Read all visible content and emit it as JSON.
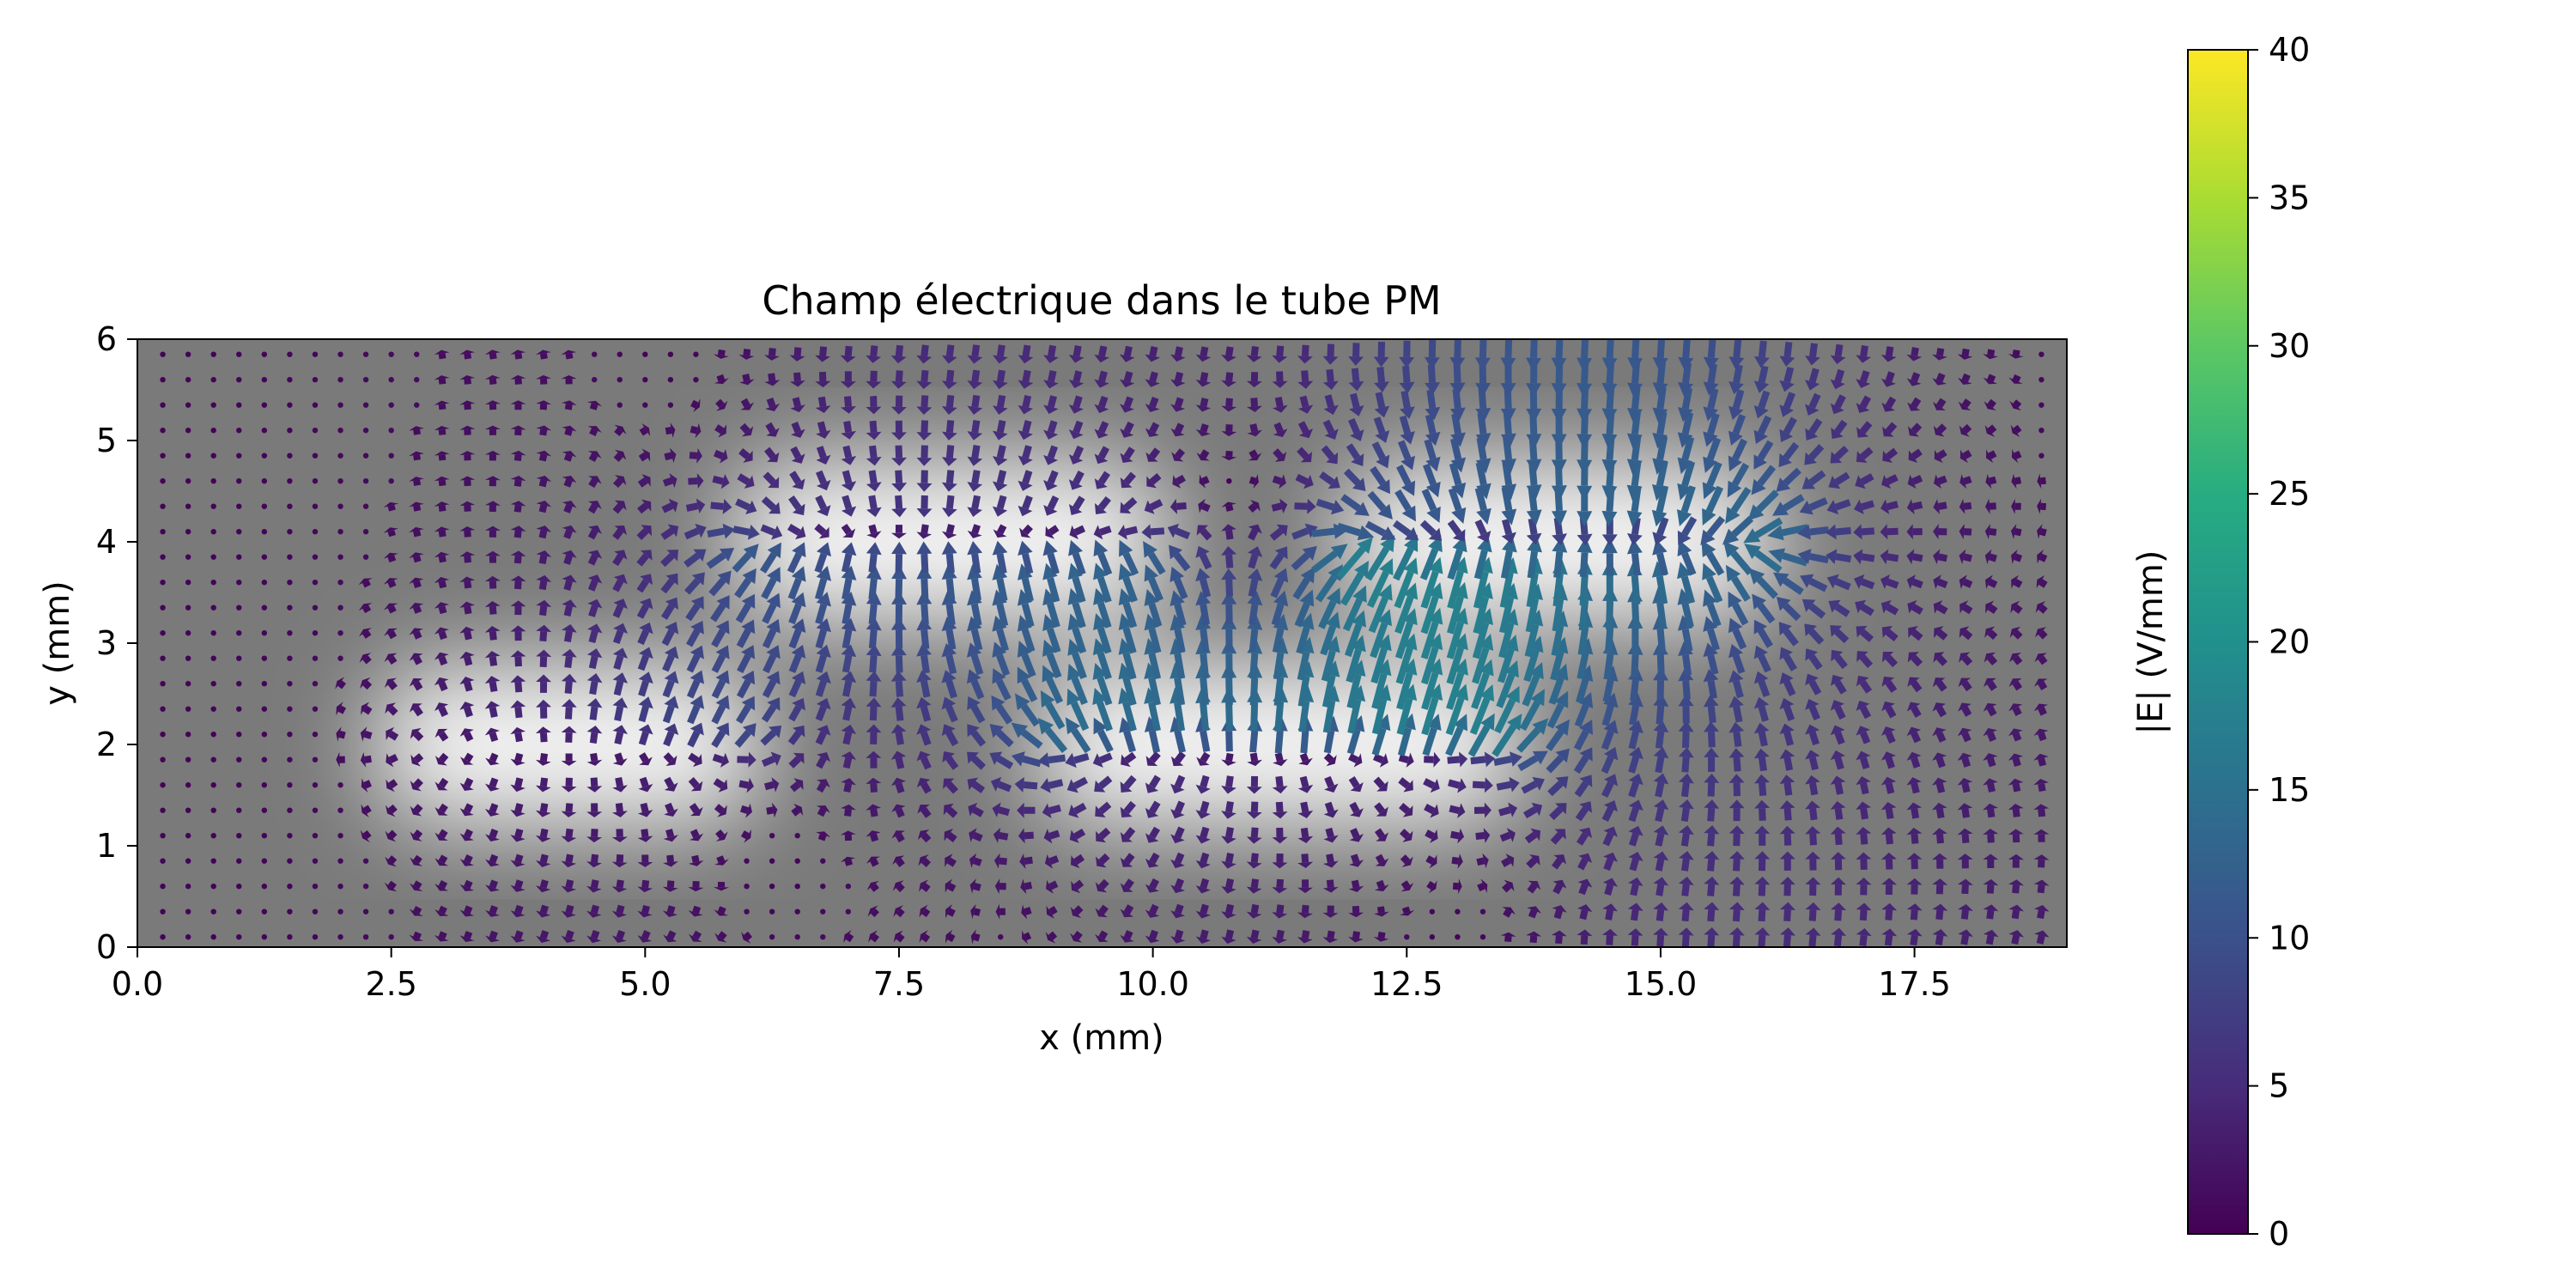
{
  "chart_data": {
    "type": "quiver",
    "title": "Champ électrique dans le tube PM",
    "xlabel": "x (mm)",
    "ylabel": "y (mm)",
    "xlim": [
      0,
      19
    ],
    "ylim": [
      0,
      6
    ],
    "xticks": [
      "0.0",
      "2.5",
      "5.0",
      "7.5",
      "10.0",
      "12.5",
      "15.0",
      "17.5"
    ],
    "xtick_values": [
      0,
      2.5,
      5,
      7.5,
      10,
      12.5,
      15,
      17.5
    ],
    "yticks": [
      "0",
      "1",
      "2",
      "3",
      "4",
      "5",
      "6"
    ],
    "ytick_values": [
      0,
      1,
      2,
      3,
      4,
      5,
      6
    ],
    "grid": false,
    "background": "potential map (grayscale), brighter near the electrodes",
    "colormap": "viridis",
    "colorbar": {
      "label": "|E| (V/mm)",
      "range": [
        0,
        40
      ],
      "ticks": [
        "0",
        "5",
        "10",
        "15",
        "20",
        "25",
        "30",
        "35",
        "40"
      ],
      "tick_values": [
        0,
        5,
        10,
        15,
        20,
        25,
        30,
        35,
        40
      ]
    },
    "electrodes": [
      {
        "x": [
          2.5,
          6.0
        ],
        "y": 2.0
      },
      {
        "x": [
          6.0,
          10.0
        ],
        "y": 4.0
      },
      {
        "x": [
          9.0,
          13.5
        ],
        "y": 2.0
      },
      {
        "x": [
          12.0,
          16.0
        ],
        "y": 4.0
      }
    ],
    "vector_grid": {
      "dx": 0.25,
      "dy": 0.25,
      "x_range": [
        0.25,
        18.75
      ],
      "y_range": [
        0.1,
        5.9
      ]
    },
    "field_magnitude_approx": {
      "max": 40,
      "typical": [
        2,
        25
      ]
    }
  },
  "colors": {
    "viridis": [
      "#440154",
      "#472c7a",
      "#3b518b",
      "#2c718e",
      "#21908d",
      "#27ad81",
      "#5cc863",
      "#aadc32",
      "#fde725"
    ],
    "background_dark": "#7a7a7a",
    "background_light": "#f4f4f4"
  }
}
